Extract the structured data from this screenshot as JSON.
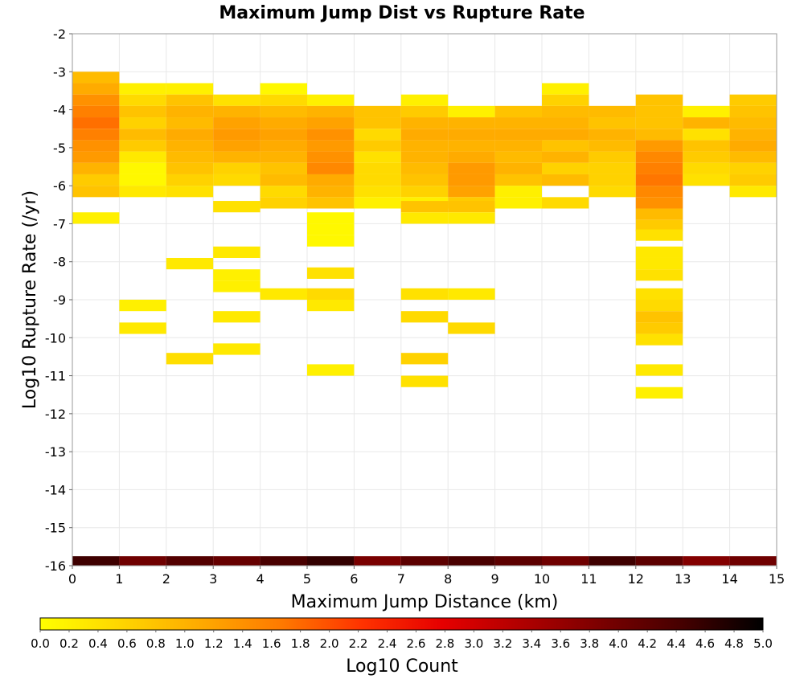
{
  "chart_data": {
    "type": "heatmap",
    "title": "Maximum Jump Dist vs Rupture Rate",
    "xlabel": "Maximum Jump Distance (km)",
    "ylabel": "Log10 Rupture Rate (/yr)",
    "xlim": [
      0,
      15
    ],
    "ylim": [
      -16,
      -2
    ],
    "x_ticks": [
      "0",
      "1",
      "2",
      "3",
      "4",
      "5",
      "6",
      "7",
      "8",
      "9",
      "10",
      "11",
      "12",
      "13",
      "14",
      "15"
    ],
    "y_ticks": [
      "-2",
      "-3",
      "-4",
      "-5",
      "-6",
      "-7",
      "-8",
      "-9",
      "-10",
      "-11",
      "-12",
      "-13",
      "-14",
      "-15",
      "-16"
    ],
    "x_bin_width": 1,
    "y_bin_height": 0.3,
    "grid": true,
    "colorbar": {
      "label": "Log10 Count",
      "range": [
        0,
        5
      ],
      "ticks": [
        "0.0",
        "0.2",
        "0.4",
        "0.6",
        "0.8",
        "1.0",
        "1.2",
        "1.4",
        "1.6",
        "1.8",
        "2.0",
        "2.2",
        "2.4",
        "2.6",
        "2.8",
        "3.0",
        "3.2",
        "3.4",
        "3.6",
        "3.8",
        "4.0",
        "4.2",
        "4.4",
        "4.6",
        "4.8",
        "5.0"
      ],
      "colors": [
        "#ffff00",
        "#ffd600",
        "#ffaa00",
        "#ff7a00",
        "#ff3300",
        "#e60000",
        "#b00000",
        "#7a0000",
        "#450000",
        "#000000"
      ]
    },
    "cells": [
      {
        "x": 0,
        "y": -3.15,
        "v": 0.9
      },
      {
        "x": 0,
        "y": -3.45,
        "v": 1.1
      },
      {
        "x": 0,
        "y": -3.75,
        "v": 1.4
      },
      {
        "x": 0,
        "y": -4.05,
        "v": 1.6
      },
      {
        "x": 0,
        "y": -4.35,
        "v": 1.75
      },
      {
        "x": 0,
        "y": -4.65,
        "v": 1.6
      },
      {
        "x": 0,
        "y": -4.95,
        "v": 1.4
      },
      {
        "x": 0,
        "y": -5.25,
        "v": 1.3
      },
      {
        "x": 0,
        "y": -5.55,
        "v": 1.0
      },
      {
        "x": 0,
        "y": -5.85,
        "v": 0.7
      },
      {
        "x": 0,
        "y": -6.15,
        "v": 0.8
      },
      {
        "x": 0,
        "y": -6.85,
        "v": 0.2
      },
      {
        "x": 1,
        "y": -3.45,
        "v": 0.2
      },
      {
        "x": 1,
        "y": -3.75,
        "v": 0.5
      },
      {
        "x": 1,
        "y": -4.05,
        "v": 0.8
      },
      {
        "x": 1,
        "y": -4.35,
        "v": 0.6
      },
      {
        "x": 1,
        "y": -4.65,
        "v": 0.9
      },
      {
        "x": 1,
        "y": -4.95,
        "v": 0.7
      },
      {
        "x": 1,
        "y": -5.25,
        "v": 0.3
      },
      {
        "x": 1,
        "y": -5.55,
        "v": 0.1
      },
      {
        "x": 1,
        "y": -5.85,
        "v": 0.1
      },
      {
        "x": 1,
        "y": -6.15,
        "v": 0.3
      },
      {
        "x": 1,
        "y": -9.15,
        "v": 0.2
      },
      {
        "x": 1,
        "y": -9.75,
        "v": 0.3
      },
      {
        "x": 2,
        "y": -3.45,
        "v": 0.2
      },
      {
        "x": 2,
        "y": -3.75,
        "v": 0.8
      },
      {
        "x": 2,
        "y": -4.05,
        "v": 1.0
      },
      {
        "x": 2,
        "y": -4.35,
        "v": 0.9
      },
      {
        "x": 2,
        "y": -4.65,
        "v": 1.1
      },
      {
        "x": 2,
        "y": -4.95,
        "v": 1.0
      },
      {
        "x": 2,
        "y": -5.25,
        "v": 0.9
      },
      {
        "x": 2,
        "y": -5.55,
        "v": 0.8
      },
      {
        "x": 2,
        "y": -5.85,
        "v": 0.6
      },
      {
        "x": 2,
        "y": -6.15,
        "v": 0.4
      },
      {
        "x": 2,
        "y": -8.05,
        "v": 0.3
      },
      {
        "x": 2,
        "y": -10.55,
        "v": 0.45
      },
      {
        "x": 3,
        "y": -3.75,
        "v": 0.4
      },
      {
        "x": 3,
        "y": -4.05,
        "v": 1.0
      },
      {
        "x": 3,
        "y": -4.35,
        "v": 1.2
      },
      {
        "x": 3,
        "y": -4.65,
        "v": 1.3
      },
      {
        "x": 3,
        "y": -4.95,
        "v": 1.2
      },
      {
        "x": 3,
        "y": -5.25,
        "v": 1.0
      },
      {
        "x": 3,
        "y": -5.55,
        "v": 0.6
      },
      {
        "x": 3,
        "y": -5.85,
        "v": 0.5
      },
      {
        "x": 3,
        "y": -6.55,
        "v": 0.4
      },
      {
        "x": 3,
        "y": -7.75,
        "v": 0.3
      },
      {
        "x": 3,
        "y": -8.35,
        "v": 0.2
      },
      {
        "x": 3,
        "y": -8.65,
        "v": 0.2
      },
      {
        "x": 3,
        "y": -9.45,
        "v": 0.3
      },
      {
        "x": 3,
        "y": -10.3,
        "v": 0.3
      },
      {
        "x": 4,
        "y": -3.45,
        "v": 0.1
      },
      {
        "x": 4,
        "y": -3.75,
        "v": 0.5
      },
      {
        "x": 4,
        "y": -4.05,
        "v": 0.9
      },
      {
        "x": 4,
        "y": -4.35,
        "v": 1.1
      },
      {
        "x": 4,
        "y": -4.65,
        "v": 1.2
      },
      {
        "x": 4,
        "y": -4.95,
        "v": 1.1
      },
      {
        "x": 4,
        "y": -5.25,
        "v": 1.0
      },
      {
        "x": 4,
        "y": -5.55,
        "v": 0.8
      },
      {
        "x": 4,
        "y": -5.85,
        "v": 0.9
      },
      {
        "x": 4,
        "y": -6.15,
        "v": 0.5
      },
      {
        "x": 4,
        "y": -6.45,
        "v": 0.6
      },
      {
        "x": 4,
        "y": -8.85,
        "v": 0.3
      },
      {
        "x": 5,
        "y": -3.75,
        "v": 0.2
      },
      {
        "x": 5,
        "y": -4.05,
        "v": 1.0
      },
      {
        "x": 5,
        "y": -4.35,
        "v": 1.2
      },
      {
        "x": 5,
        "y": -4.65,
        "v": 1.4
      },
      {
        "x": 5,
        "y": -4.95,
        "v": 1.3
      },
      {
        "x": 5,
        "y": -5.25,
        "v": 1.4
      },
      {
        "x": 5,
        "y": -5.55,
        "v": 1.5
      },
      {
        "x": 5,
        "y": -5.85,
        "v": 1.1
      },
      {
        "x": 5,
        "y": -6.15,
        "v": 1.0
      },
      {
        "x": 5,
        "y": -6.45,
        "v": 0.8
      },
      {
        "x": 5,
        "y": -6.85,
        "v": 0.1
      },
      {
        "x": 5,
        "y": -7.15,
        "v": 0.1
      },
      {
        "x": 5,
        "y": -7.45,
        "v": 0.1
      },
      {
        "x": 5,
        "y": -8.3,
        "v": 0.4
      },
      {
        "x": 5,
        "y": -8.85,
        "v": 0.5
      },
      {
        "x": 5,
        "y": -9.15,
        "v": 0.3
      },
      {
        "x": 5,
        "y": -10.85,
        "v": 0.2
      },
      {
        "x": 6,
        "y": -4.05,
        "v": 0.8
      },
      {
        "x": 6,
        "y": -4.35,
        "v": 0.8
      },
      {
        "x": 6,
        "y": -4.65,
        "v": 0.5
      },
      {
        "x": 6,
        "y": -4.95,
        "v": 0.7
      },
      {
        "x": 6,
        "y": -5.25,
        "v": 0.4
      },
      {
        "x": 6,
        "y": -5.55,
        "v": 0.5
      },
      {
        "x": 6,
        "y": -5.85,
        "v": 0.5
      },
      {
        "x": 6,
        "y": -6.15,
        "v": 0.4
      },
      {
        "x": 6,
        "y": -6.45,
        "v": 0.2
      },
      {
        "x": 7,
        "y": -3.75,
        "v": 0.2
      },
      {
        "x": 7,
        "y": -4.05,
        "v": 0.7
      },
      {
        "x": 7,
        "y": -4.35,
        "v": 1.0
      },
      {
        "x": 7,
        "y": -4.65,
        "v": 1.1
      },
      {
        "x": 7,
        "y": -4.95,
        "v": 1.0
      },
      {
        "x": 7,
        "y": -5.25,
        "v": 1.0
      },
      {
        "x": 7,
        "y": -5.55,
        "v": 0.9
      },
      {
        "x": 7,
        "y": -5.85,
        "v": 0.8
      },
      {
        "x": 7,
        "y": -6.15,
        "v": 0.6
      },
      {
        "x": 7,
        "y": -6.45,
        "v": 0.2
      },
      {
        "x": 7,
        "y": -6.55,
        "v": 0.8
      },
      {
        "x": 7,
        "y": -6.85,
        "v": 0.3
      },
      {
        "x": 7,
        "y": -8.85,
        "v": 0.4
      },
      {
        "x": 7,
        "y": -9.45,
        "v": 0.5
      },
      {
        "x": 7,
        "y": -10.55,
        "v": 0.6
      },
      {
        "x": 7,
        "y": -11.15,
        "v": 0.4
      },
      {
        "x": 8,
        "y": -4.05,
        "v": 0.2
      },
      {
        "x": 8,
        "y": -4.35,
        "v": 1.0
      },
      {
        "x": 8,
        "y": -4.65,
        "v": 1.1
      },
      {
        "x": 8,
        "y": -4.95,
        "v": 1.0
      },
      {
        "x": 8,
        "y": -5.25,
        "v": 1.1
      },
      {
        "x": 8,
        "y": -5.55,
        "v": 1.3
      },
      {
        "x": 8,
        "y": -5.85,
        "v": 1.3
      },
      {
        "x": 8,
        "y": -6.15,
        "v": 1.2
      },
      {
        "x": 8,
        "y": -6.45,
        "v": 0.7
      },
      {
        "x": 8,
        "y": -6.55,
        "v": 0.8
      },
      {
        "x": 8,
        "y": -6.85,
        "v": 0.3
      },
      {
        "x": 8,
        "y": -8.85,
        "v": 0.3
      },
      {
        "x": 8,
        "y": -9.75,
        "v": 0.5
      },
      {
        "x": 9,
        "y": -4.05,
        "v": 0.8
      },
      {
        "x": 9,
        "y": -4.35,
        "v": 1.0
      },
      {
        "x": 9,
        "y": -4.65,
        "v": 1.1
      },
      {
        "x": 9,
        "y": -4.95,
        "v": 1.0
      },
      {
        "x": 9,
        "y": -5.25,
        "v": 0.9
      },
      {
        "x": 9,
        "y": -5.55,
        "v": 1.0
      },
      {
        "x": 9,
        "y": -5.85,
        "v": 0.8
      },
      {
        "x": 9,
        "y": -6.15,
        "v": 0.2
      },
      {
        "x": 9,
        "y": -6.45,
        "v": 0.2
      },
      {
        "x": 10,
        "y": -3.45,
        "v": 0.2
      },
      {
        "x": 10,
        "y": -3.75,
        "v": 0.6
      },
      {
        "x": 10,
        "y": -4.05,
        "v": 0.9
      },
      {
        "x": 10,
        "y": -4.35,
        "v": 1.0
      },
      {
        "x": 10,
        "y": -4.65,
        "v": 1.1
      },
      {
        "x": 10,
        "y": -4.95,
        "v": 0.8
      },
      {
        "x": 10,
        "y": -5.25,
        "v": 1.0
      },
      {
        "x": 10,
        "y": -5.55,
        "v": 0.6
      },
      {
        "x": 10,
        "y": -5.85,
        "v": 0.9
      },
      {
        "x": 10,
        "y": -6.45,
        "v": 0.5
      },
      {
        "x": 11,
        "y": -4.05,
        "v": 0.9
      },
      {
        "x": 11,
        "y": -4.35,
        "v": 0.8
      },
      {
        "x": 11,
        "y": -4.65,
        "v": 1.0
      },
      {
        "x": 11,
        "y": -4.95,
        "v": 0.9
      },
      {
        "x": 11,
        "y": -5.25,
        "v": 0.7
      },
      {
        "x": 11,
        "y": -5.55,
        "v": 0.6
      },
      {
        "x": 11,
        "y": -5.85,
        "v": 0.6
      },
      {
        "x": 11,
        "y": -6.15,
        "v": 0.5
      },
      {
        "x": 12,
        "y": -3.75,
        "v": 0.8
      },
      {
        "x": 12,
        "y": -4.05,
        "v": 0.8
      },
      {
        "x": 12,
        "y": -4.35,
        "v": 0.8
      },
      {
        "x": 12,
        "y": -4.65,
        "v": 0.9
      },
      {
        "x": 12,
        "y": -4.95,
        "v": 1.3
      },
      {
        "x": 12,
        "y": -5.25,
        "v": 1.5
      },
      {
        "x": 12,
        "y": -5.55,
        "v": 1.6
      },
      {
        "x": 12,
        "y": -5.85,
        "v": 1.7
      },
      {
        "x": 12,
        "y": -6.15,
        "v": 1.5
      },
      {
        "x": 12,
        "y": -6.45,
        "v": 1.4
      },
      {
        "x": 12,
        "y": -6.75,
        "v": 0.9
      },
      {
        "x": 12,
        "y": -7.05,
        "v": 0.7
      },
      {
        "x": 12,
        "y": -7.3,
        "v": 0.4
      },
      {
        "x": 12,
        "y": -7.75,
        "v": 0.3
      },
      {
        "x": 12,
        "y": -8.05,
        "v": 0.3
      },
      {
        "x": 12,
        "y": -8.35,
        "v": 0.4
      },
      {
        "x": 12,
        "y": -8.85,
        "v": 0.4
      },
      {
        "x": 12,
        "y": -9.15,
        "v": 0.5
      },
      {
        "x": 12,
        "y": -9.45,
        "v": 0.8
      },
      {
        "x": 12,
        "y": -9.75,
        "v": 0.7
      },
      {
        "x": 12,
        "y": -10.05,
        "v": 0.4
      },
      {
        "x": 12,
        "y": -10.85,
        "v": 0.3
      },
      {
        "x": 12,
        "y": -11.45,
        "v": 0.2
      },
      {
        "x": 13,
        "y": -4.05,
        "v": 0.2
      },
      {
        "x": 13,
        "y": -4.35,
        "v": 1.0
      },
      {
        "x": 13,
        "y": -4.65,
        "v": 0.4
      },
      {
        "x": 13,
        "y": -4.95,
        "v": 0.8
      },
      {
        "x": 13,
        "y": -5.25,
        "v": 0.7
      },
      {
        "x": 13,
        "y": -5.55,
        "v": 0.5
      },
      {
        "x": 13,
        "y": -5.85,
        "v": 0.4
      },
      {
        "x": 14,
        "y": -3.75,
        "v": 0.7
      },
      {
        "x": 14,
        "y": -4.05,
        "v": 0.8
      },
      {
        "x": 14,
        "y": -4.35,
        "v": 0.9
      },
      {
        "x": 14,
        "y": -4.65,
        "v": 1.0
      },
      {
        "x": 14,
        "y": -4.95,
        "v": 1.1
      },
      {
        "x": 14,
        "y": -5.25,
        "v": 0.9
      },
      {
        "x": 14,
        "y": -5.55,
        "v": 0.6
      },
      {
        "x": 14,
        "y": -5.85,
        "v": 0.7
      },
      {
        "x": 14,
        "y": -6.15,
        "v": 0.3
      }
    ],
    "baseline_row": {
      "y": -15.9,
      "values": [
        4.5,
        4.0,
        4.3,
        4.1,
        4.4,
        4.6,
        3.9,
        4.2,
        4.4,
        4.2,
        4.0,
        4.5,
        4.2,
        3.8,
        4.0
      ]
    }
  }
}
